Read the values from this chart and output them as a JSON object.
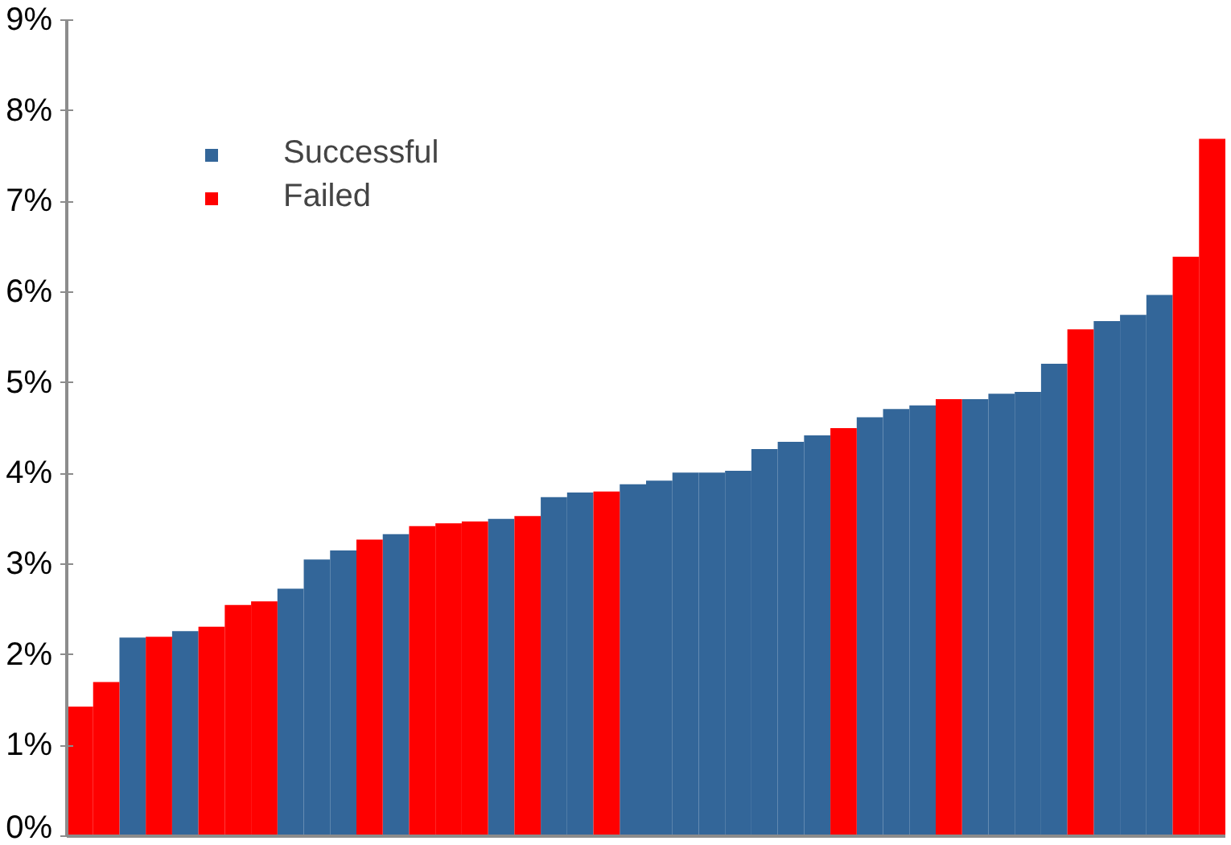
{
  "chart_data": {
    "type": "bar",
    "categories": [
      null,
      null,
      null,
      null,
      null,
      null,
      null,
      null,
      null,
      null,
      null,
      null,
      null,
      null,
      null,
      null,
      null,
      null,
      null,
      null,
      null,
      null,
      null,
      null,
      null,
      null,
      null,
      null,
      null,
      null,
      null,
      null,
      null,
      null,
      null,
      null,
      null,
      null,
      null,
      null,
      null,
      null,
      null,
      null
    ],
    "series": [
      {
        "name": "Successful",
        "color": "#336699",
        "values": [
          null,
          null,
          2.19,
          null,
          2.26,
          null,
          null,
          null,
          2.73,
          3.05,
          3.15,
          null,
          3.33,
          null,
          null,
          null,
          3.5,
          null,
          3.74,
          3.79,
          null,
          3.88,
          3.92,
          4.01,
          4.01,
          4.03,
          4.27,
          4.35,
          4.42,
          null,
          4.62,
          4.71,
          4.75,
          null,
          4.82,
          4.88,
          4.9,
          5.21,
          null,
          5.68,
          5.75,
          5.97,
          null,
          null
        ]
      },
      {
        "name": "Failed",
        "color": "#ff0000",
        "values": [
          1.43,
          1.7,
          null,
          2.2,
          null,
          2.31,
          2.55,
          2.59,
          null,
          null,
          null,
          3.27,
          null,
          3.42,
          3.45,
          3.47,
          null,
          3.53,
          null,
          null,
          3.8,
          null,
          null,
          null,
          null,
          null,
          null,
          null,
          null,
          4.5,
          null,
          null,
          null,
          4.82,
          null,
          null,
          null,
          null,
          5.59,
          null,
          null,
          null,
          6.39,
          7.69
        ]
      }
    ],
    "ylim": [
      0,
      9
    ],
    "yticks": [
      {
        "value": 0,
        "label": "0%"
      },
      {
        "value": 1,
        "label": "1%"
      },
      {
        "value": 2,
        "label": "2%"
      },
      {
        "value": 3,
        "label": "3%"
      },
      {
        "value": 4,
        "label": "4%"
      },
      {
        "value": 5,
        "label": "5%"
      },
      {
        "value": 6,
        "label": "6%"
      },
      {
        "value": 7,
        "label": "7%"
      },
      {
        "value": 8,
        "label": "8%"
      },
      {
        "value": 9,
        "label": "9%"
      }
    ],
    "tick_labels": "y",
    "grid": false,
    "legend": "top left"
  }
}
